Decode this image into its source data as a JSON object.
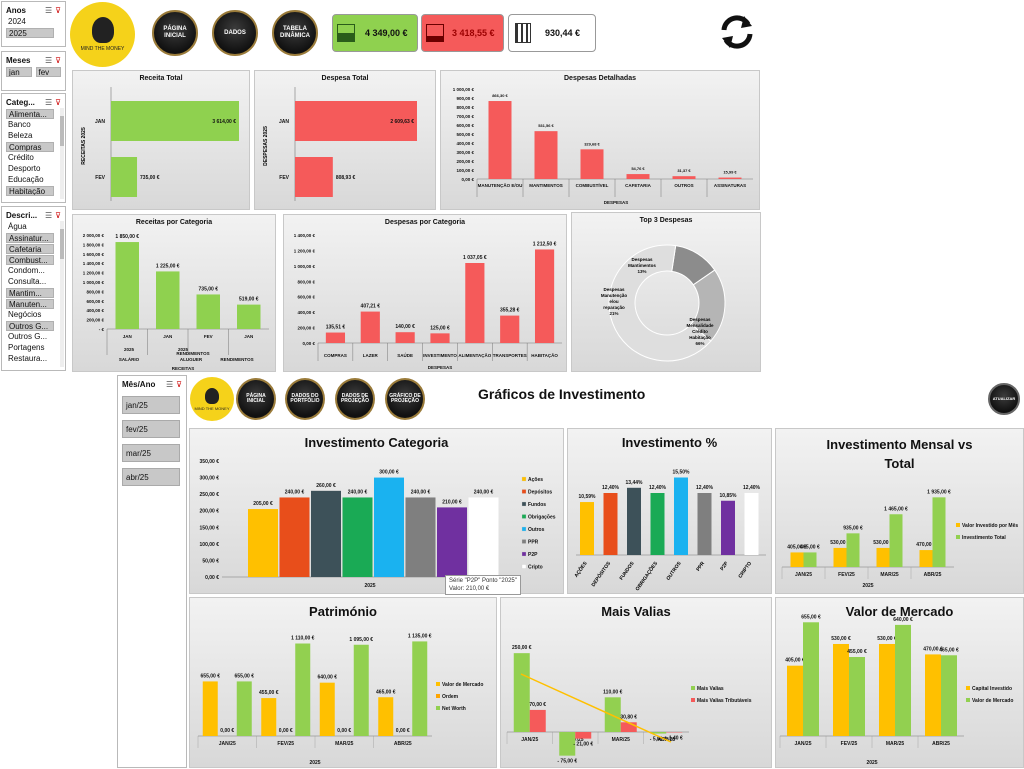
{
  "slicers": {
    "anos": {
      "title": "Anos",
      "items": [
        {
          "label": "2024",
          "sel": false
        },
        {
          "label": "2025",
          "sel": true
        }
      ]
    },
    "meses": {
      "title": "Meses",
      "items": [
        {
          "label": "jan",
          "sel": true
        },
        {
          "label": "fev",
          "sel": true
        }
      ]
    },
    "categ": {
      "title": "Categ...",
      "items": [
        {
          "label": "Alimenta...",
          "sel": true
        },
        {
          "label": "Banco",
          "sel": false
        },
        {
          "label": "Beleza",
          "sel": false
        },
        {
          "label": "Compras",
          "sel": true
        },
        {
          "label": "Crédito",
          "sel": false
        },
        {
          "label": "Desporto",
          "sel": false
        },
        {
          "label": "Educação",
          "sel": false
        },
        {
          "label": "Habitação",
          "sel": true
        }
      ]
    },
    "descri": {
      "title": "Descri...",
      "items": [
        {
          "label": "Água",
          "sel": false
        },
        {
          "label": "Assinatur...",
          "sel": true
        },
        {
          "label": "Cafetaria",
          "sel": true
        },
        {
          "label": "Combust...",
          "sel": true
        },
        {
          "label": "Condom...",
          "sel": false
        },
        {
          "label": "Consulta...",
          "sel": false
        },
        {
          "label": "Mantim...",
          "sel": true
        },
        {
          "label": "Manuten...",
          "sel": true
        },
        {
          "label": "Negócios",
          "sel": false
        },
        {
          "label": "Outros G...",
          "sel": true
        },
        {
          "label": "Outros G...",
          "sel": false
        },
        {
          "label": "Portagens",
          "sel": false
        },
        {
          "label": "Restaura...",
          "sel": false
        }
      ]
    },
    "mesano": {
      "title": "Mês/Ano",
      "items": [
        {
          "label": "jan/25"
        },
        {
          "label": "fev/25"
        },
        {
          "label": "mar/25"
        },
        {
          "label": "abr/25"
        }
      ]
    }
  },
  "top": {
    "logo_text": "MIND THE MONEY",
    "nav": [
      "PÁGINA INICIAL",
      "DADOS",
      "TABELA DINÂMICA"
    ],
    "kpi_income": "4 349,00 €",
    "kpi_expense": "3 418,55 €",
    "kpi_balance": "930,44 €"
  },
  "invest_header": {
    "logo_text": "MIND THE MONEY",
    "nav": [
      "PÁGINA INICIAL",
      "DADOS DO PORTFÓLIO",
      "DADOS DE PROJEÇÃO",
      "GRÁFICO DE PROJEÇÃO"
    ],
    "title": "Gráficos de Investimento",
    "update_label": "ATUALIZAR"
  },
  "tooltip": {
    "line1": "Série \"P2P\" Ponto \"2025\"",
    "line2": "Valor:  210,00 €"
  },
  "colors": {
    "green": "#8fd14f",
    "red": "#f55a5a",
    "yellow": "#ffc000",
    "lightgreen": "#92d050"
  },
  "chart_data": [
    {
      "id": "receita_total",
      "type": "bar",
      "orientation": "horizontal",
      "title": "Receita Total",
      "ylabel": "RECEITAS 2025",
      "categories": [
        "JAN",
        "FEV"
      ],
      "values": [
        3614.0,
        735.0
      ],
      "value_labels": [
        "3 614,00 €",
        "735,00 €"
      ]
    },
    {
      "id": "despesa_total",
      "type": "bar",
      "orientation": "horizontal",
      "title": "Despesa Total",
      "ylabel": "DESPESAS 2025",
      "categories": [
        "JAN",
        "FEV"
      ],
      "values": [
        2609.63,
        808.93
      ],
      "value_labels": [
        "2 609,63 €",
        "808,93 €"
      ]
    },
    {
      "id": "despesas_detalhadas",
      "type": "bar",
      "title": "Despesas Detalhadas",
      "xlabel": "DESPESAS",
      "ylim": [
        0,
        1000
      ],
      "ticks": [
        "1 000,00 €",
        "900,00 €",
        "800,00 €",
        "700,00 €",
        "600,00 €",
        "500,00 €",
        "400,00 €",
        "300,00 €",
        "200,00 €",
        "100,00 €",
        "0,00 €"
      ],
      "categories": [
        "MANUTENÇÃO E/OU REPARAÇÃO",
        "MANTIMENTOS",
        "COMBUSTÍVEL",
        "CAFETARIA",
        "OUTROS GASTOS",
        "ASSINATURAS STREAMING"
      ],
      "values": [
        866.3,
        531.56,
        329.68,
        54.76,
        31.37,
        15.99
      ],
      "value_labels": [
        "866,30 €",
        "531,56 €",
        "329,68 €",
        "54,76 €",
        "31,37 €",
        "15,99 €"
      ]
    },
    {
      "id": "receitas_categoria",
      "type": "bar",
      "title": "Receitas por Categoria",
      "xlabel": "RECEITAS",
      "ylim": [
        0,
        2000
      ],
      "ticks": [
        "2 000,00 €",
        "1 800,00 €",
        "1 600,00 €",
        "1 400,00 €",
        "1 200,00 €",
        "1 000,00 €",
        "800,00 €",
        "600,00 €",
        "400,00 €",
        "200,00 €",
        "- €"
      ],
      "categories": [
        "JAN 2025 SALÁRIO",
        "JAN 2025 ALUGUER",
        "FEV RENDIMENTOS",
        "JAN 2025 RENDIMENTO EXTRAORDINÁ"
      ],
      "values": [
        1850.0,
        1225.0,
        735.0,
        519.0
      ],
      "value_labels": [
        "1 850,00 €",
        "1 225,00 €",
        "735,00 €",
        "519,00 €"
      ]
    },
    {
      "id": "despesas_categoria",
      "type": "bar",
      "title": "Despesas por Categoria",
      "xlabel": "DESPESAS",
      "ylim": [
        0,
        1400
      ],
      "ticks": [
        "1 400,00 €",
        "1 200,00 €",
        "1 000,00 €",
        "800,00 €",
        "600,00 €",
        "400,00 €",
        "200,00 €",
        "0,00 €"
      ],
      "categories": [
        "COMPRAS",
        "LAZER",
        "SAÚDE",
        "INVESTIMENTO",
        "ALIMENTAÇÃO",
        "TRANSPORTES",
        "HABITAÇÃO"
      ],
      "values": [
        135.51,
        407.21,
        140.0,
        125.0,
        1037.05,
        355.28,
        1212.5
      ],
      "value_labels": [
        "135,51 €",
        "407,21 €",
        "140,00 €",
        "125,00 €",
        "1 037,05 €",
        "355,28 €",
        "1 212,50 €"
      ]
    },
    {
      "id": "top3",
      "type": "pie",
      "title": "Top 3 Despesas",
      "labels": [
        "Despesas Mantimentos",
        "Despesas Manutenção e/ou reparação",
        "Despesas Mensalidade Crédito Habitação"
      ],
      "values": [
        13,
        21,
        66
      ],
      "value_labels": [
        "13%",
        "21%",
        "66%"
      ]
    },
    {
      "id": "investimento_categoria",
      "type": "bar",
      "title": "Investimento Categoria",
      "xlabel": "2025",
      "ylim": [
        0,
        350
      ],
      "ticks": [
        "350,00 €",
        "300,00 €",
        "250,00 €",
        "200,00 €",
        "150,00 €",
        "100,00 €",
        "50,00 €",
        "0,00 €"
      ],
      "series": [
        {
          "name": "Ações",
          "value": 205.0,
          "label": "205,00 €",
          "color": "#ffc000"
        },
        {
          "name": "Depósitos",
          "value": 240.0,
          "label": "240,00 €",
          "color": "#e84e1b"
        },
        {
          "name": "Fundos",
          "value": 260.0,
          "label": "260,00 €",
          "color": "#3d5159"
        },
        {
          "name": "Obrigações",
          "value": 240.0,
          "label": "240,00 €",
          "color": "#1aaa55"
        },
        {
          "name": "Outros",
          "value": 300.0,
          "label": "300,00 €",
          "color": "#1ab2f0"
        },
        {
          "name": "PPR",
          "value": 240.0,
          "label": "240,00 €",
          "color": "#7f7f7f"
        },
        {
          "name": "P2P",
          "value": 210.0,
          "label": "210,00 €",
          "color": "#7030a0"
        },
        {
          "name": "Cripto",
          "value": 240.0,
          "label": "240,00 €",
          "color": "#ffffff"
        }
      ]
    },
    {
      "id": "investimento_pct",
      "type": "bar",
      "title": "Investimento %",
      "categories": [
        "AÇÕES",
        "DEPÓSITOS",
        "FUNDOS",
        "OBRIGAÇÕES",
        "OUTROS",
        "PPR",
        "P2P",
        "CRIPTO"
      ],
      "values": [
        10.59,
        12.4,
        13.44,
        12.4,
        15.5,
        12.4,
        10.85,
        12.4
      ],
      "value_labels": [
        "10,59%",
        "12,40%",
        "13,44%",
        "12,40%",
        "15,50%",
        "12,40%",
        "10,85%",
        "12,40%"
      ],
      "colors": [
        "#ffc000",
        "#e84e1b",
        "#3d5159",
        "#1aaa55",
        "#1ab2f0",
        "#7f7f7f",
        "#7030a0",
        "#ffffff"
      ]
    },
    {
      "id": "mensal_vs_total",
      "type": "bar",
      "title": "Investimento Mensal vs Total",
      "xlabel": "2025",
      "categories": [
        "JAN/25",
        "FEV/25",
        "MAR/25",
        "ABR/25"
      ],
      "series": [
        {
          "name": "Valor Investido por Mês",
          "values": [
            405,
            530,
            530,
            470
          ],
          "labels": [
            "405,00 €",
            "530,00 €",
            "530,00 €",
            "470,00 €"
          ],
          "color": "#ffc000"
        },
        {
          "name": "Investimento Total",
          "values": [
            405,
            935,
            1465,
            1935
          ],
          "labels": [
            "405,00 €",
            "935,00 €",
            "1 465,00 €",
            "1 935,00 €"
          ],
          "color": "#92d050"
        }
      ]
    },
    {
      "id": "patrimonio",
      "type": "bar",
      "title": "Património",
      "xlabel": "2025",
      "categories": [
        "JAN/25",
        "FEV/25",
        "MAR/25",
        "ABR/25"
      ],
      "series": [
        {
          "name": "Valor de Mercado",
          "values": [
            655,
            455,
            640,
            465
          ],
          "labels": [
            "655,00 €",
            "455,00 €",
            "640,00 €",
            "465,00 €"
          ],
          "color": "#ffc000"
        },
        {
          "name": "Ordem",
          "values": [
            0,
            0,
            0,
            0
          ],
          "labels": [
            "0,00 €",
            "0,00 €",
            "0,00 €",
            "0,00 €"
          ],
          "color": "#ffa500"
        },
        {
          "name": "Net Worth",
          "values": [
            655,
            1110,
            1095,
            1135
          ],
          "labels": [
            "655,00 €",
            "1 110,00 €",
            "1 095,00 €",
            "1 135,00 €"
          ],
          "color": "#92d050"
        }
      ]
    },
    {
      "id": "mais_valias",
      "type": "bar",
      "title": "Mais Valias",
      "categories": [
        "JAN/25",
        "FEV/25",
        "MAR/25",
        "ABR/25"
      ],
      "series": [
        {
          "name": "Mais Valias",
          "values": [
            250,
            -75,
            110,
            -5
          ],
          "labels": [
            "250,00 €",
            "- 75,00 €",
            "110,00 €",
            "- 5,00 €"
          ],
          "color": "#92d050"
        },
        {
          "name": "Mais Valias Tributáveis",
          "values": [
            70,
            -21,
            30.8,
            -1.4
          ],
          "labels": [
            "70,00 €",
            "- 21,00 €",
            "30,80 €",
            "- 1,40 €"
          ],
          "color": "#f55a5a"
        }
      ]
    },
    {
      "id": "valor_mercado",
      "type": "bar",
      "title": "Valor de Mercado",
      "xlabel": "2025",
      "categories": [
        "JAN/25",
        "FEV/25",
        "MAR/25",
        "ABR/25"
      ],
      "series": [
        {
          "name": "Capital Investido",
          "values": [
            405,
            530,
            530,
            470
          ],
          "labels": [
            "405,00 €",
            "530,00 €",
            "530,00 €",
            "470,00 €"
          ],
          "color": "#ffc000"
        },
        {
          "name": "Valor de Mercado",
          "values": [
            655,
            455,
            640,
            465
          ],
          "labels": [
            "655,00 €",
            "455,00 €",
            "640,00 €",
            "465,00 €"
          ],
          "color": "#92d050"
        }
      ]
    }
  ]
}
